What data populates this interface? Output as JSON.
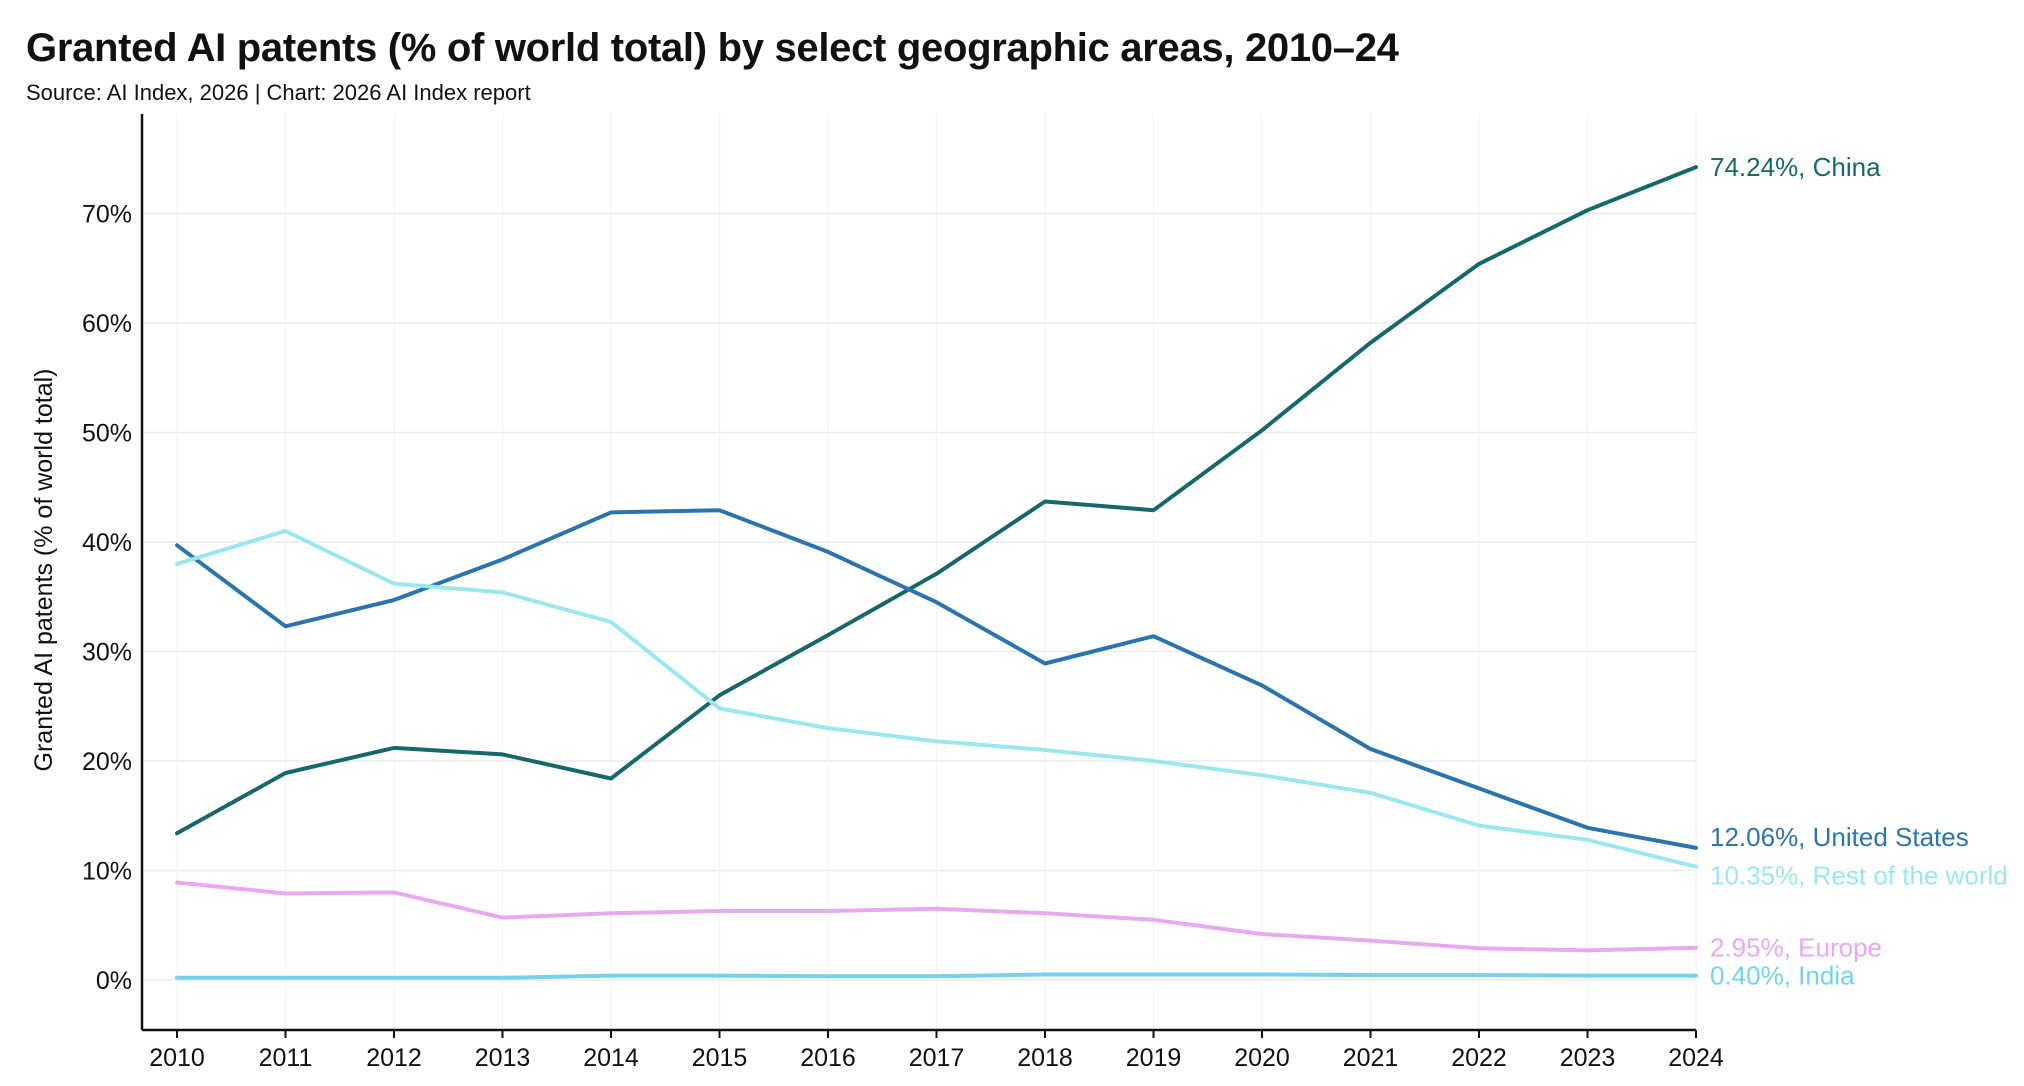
{
  "chart_data": {
    "type": "line",
    "title": "Granted AI patents (% of world total) by select geographic areas, 2010–24",
    "subtitle": "Source: AI Index, 2026 | Chart: 2026 AI Index report",
    "xlabel": "",
    "ylabel": "Granted AI patents (% of world total)",
    "x": [
      2010,
      2011,
      2012,
      2013,
      2014,
      2015,
      2016,
      2017,
      2018,
      2019,
      2020,
      2021,
      2022,
      2023,
      2024
    ],
    "ylim": [
      -5,
      80
    ],
    "yticks": [
      0,
      10,
      20,
      30,
      40,
      50,
      60,
      70
    ],
    "ytick_labels": [
      "0%",
      "10%",
      "20%",
      "30%",
      "40%",
      "50%",
      "60%",
      "70%"
    ],
    "grid": "horizontal",
    "series": [
      {
        "name": "China",
        "color": "#16686b",
        "end_label": "74.24%, China",
        "values": [
          13.4,
          18.9,
          21.2,
          20.6,
          18.4,
          26.0,
          31.5,
          37.1,
          43.7,
          42.9,
          50.2,
          58.2,
          65.4,
          70.3,
          74.24
        ]
      },
      {
        "name": "United States",
        "color": "#2c74ad",
        "end_label": "12.06%, United States",
        "values": [
          39.7,
          32.3,
          34.7,
          38.4,
          42.7,
          42.9,
          39.1,
          34.5,
          28.9,
          31.4,
          26.9,
          21.1,
          17.5,
          13.9,
          12.06
        ]
      },
      {
        "name": "Rest of the world",
        "color": "#9ae8ee",
        "end_label": "10.35%, Rest of the world",
        "values": [
          38.0,
          41.0,
          36.2,
          35.4,
          32.7,
          24.8,
          23.0,
          21.8,
          21.0,
          20.0,
          18.7,
          17.1,
          14.1,
          12.8,
          10.35
        ]
      },
      {
        "name": "Europe",
        "color": "#e7a9ef",
        "end_label": "2.95%, Europe",
        "values": [
          8.9,
          7.9,
          8.0,
          5.7,
          6.1,
          6.3,
          6.3,
          6.5,
          6.1,
          5.5,
          4.2,
          3.6,
          2.9,
          2.7,
          2.95
        ]
      },
      {
        "name": "India",
        "color": "#74d2ec",
        "end_label": "0.40%, India",
        "values": [
          0.2,
          0.2,
          0.2,
          0.2,
          0.4,
          0.4,
          0.35,
          0.35,
          0.5,
          0.5,
          0.5,
          0.45,
          0.45,
          0.4,
          0.4
        ]
      }
    ]
  }
}
